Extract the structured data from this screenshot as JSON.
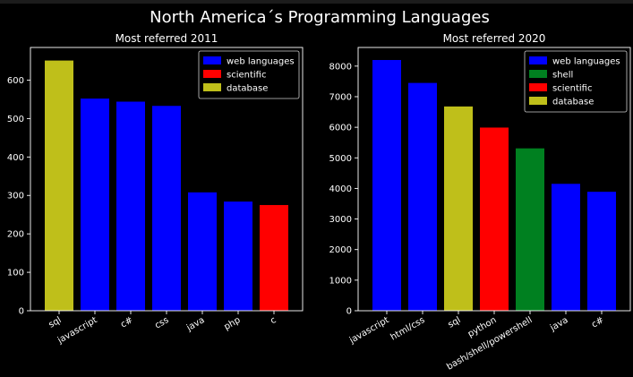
{
  "suptitle": "North America´s Programming Languages",
  "colors": {
    "web languages": "#0000ff",
    "scientific": "#ff0000",
    "database": "#bfbf1a",
    "shell": "#008020",
    "background": "#000000",
    "foreground": "#ffffff",
    "legend_bg": "#000000"
  },
  "chart_data": [
    {
      "type": "bar",
      "title": "Most referred 2011",
      "xlabel": "",
      "ylabel": "",
      "categories": [
        "sql",
        "javascript",
        "c#",
        "css",
        "java",
        "php",
        "c"
      ],
      "values": [
        651,
        552,
        544,
        533,
        308,
        284,
        275
      ],
      "groups": [
        "database",
        "web languages",
        "web languages",
        "web languages",
        "web languages",
        "web languages",
        "scientific"
      ],
      "ylim": [
        0,
        685
      ],
      "yticks": [
        0,
        100,
        200,
        300,
        400,
        500,
        600
      ],
      "grid": false,
      "legend": [
        "web languages",
        "scientific",
        "database"
      ],
      "legend_position": "top-right"
    },
    {
      "type": "bar",
      "title": "Most referred 2020",
      "xlabel": "",
      "ylabel": "",
      "categories": [
        "javascript",
        "html/css",
        "sql",
        "python",
        "bash/shell/powershell",
        "java",
        "c#"
      ],
      "values": [
        8200,
        7450,
        6680,
        5990,
        5310,
        4150,
        3890
      ],
      "groups": [
        "web languages",
        "web languages",
        "database",
        "scientific",
        "shell",
        "web languages",
        "web languages"
      ],
      "ylim": [
        0,
        8610
      ],
      "yticks": [
        0,
        1000,
        2000,
        3000,
        4000,
        5000,
        6000,
        7000,
        8000
      ],
      "grid": false,
      "legend": [
        "web languages",
        "shell",
        "scientific",
        "database"
      ],
      "legend_position": "top-right"
    }
  ]
}
